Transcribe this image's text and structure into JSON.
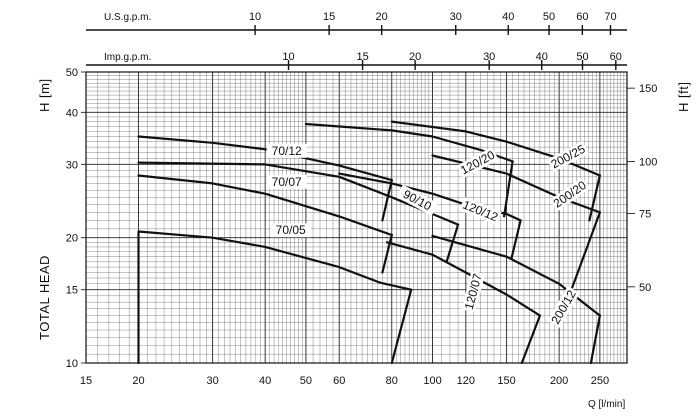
{
  "chart_data": {
    "type": "line",
    "x_scale": "log",
    "y_scale": "log",
    "grid": true,
    "xlabel": "Q [l/min]",
    "ylabel": "TOTAL HEAD",
    "ylabel_left_unit": "H [m]",
    "ylabel_right_unit": "H [ft]",
    "top_scale_1_label": "U.S.g.p.m.",
    "top_scale_2_label": "Imp.g.p.m.",
    "xlim": [
      15,
      290
    ],
    "ylim": [
      10,
      50
    ],
    "x_ticks": [
      "15",
      "20",
      "30",
      "40",
      "50",
      "60",
      "80",
      "100",
      "120",
      "150",
      "200",
      "250"
    ],
    "y_ticks_left": [
      "10",
      "15",
      "20",
      "30",
      "40",
      "50"
    ],
    "y_ticks_right": [
      "50",
      "75",
      "100",
      "150"
    ],
    "usgpm_ticks": [
      "10",
      "15",
      "20",
      "30",
      "40",
      "50",
      "60",
      "70"
    ],
    "impgpm_ticks": [
      "10",
      "15",
      "20",
      "30",
      "40",
      "50",
      "60"
    ],
    "series": [
      {
        "name": "70/05",
        "points": [
          [
            20,
            10
          ],
          [
            20,
            20.7
          ],
          [
            30,
            20
          ],
          [
            40,
            19
          ],
          [
            60,
            17
          ],
          [
            75,
            15.6
          ],
          [
            89,
            15
          ]
        ],
        "limit": [
          [
            89,
            15
          ],
          [
            80,
            10
          ]
        ]
      },
      {
        "name": "70/07",
        "points": [
          [
            20,
            28.2
          ],
          [
            30,
            27
          ],
          [
            40,
            25.5
          ],
          [
            60,
            22.5
          ],
          [
            80,
            20.3
          ]
        ],
        "limit": [
          [
            80,
            20.3
          ],
          [
            76,
            16.5
          ]
        ]
      },
      {
        "name": "70/12",
        "points": [
          [
            20,
            35
          ],
          [
            30,
            33.8
          ],
          [
            40,
            32.6
          ],
          [
            60,
            29.8
          ],
          [
            80,
            27.5
          ]
        ],
        "limit": [
          [
            80,
            27.5
          ],
          [
            76,
            22
          ]
        ]
      },
      {
        "name": "90/10",
        "points": [
          [
            20,
            30.3
          ],
          [
            40,
            30
          ],
          [
            60,
            28
          ],
          [
            80,
            25
          ],
          [
            100,
            22.8
          ],
          [
            115,
            21.5
          ]
        ],
        "limit": [
          [
            115,
            21.5
          ],
          [
            108,
            17.5
          ]
        ]
      },
      {
        "name": "120/07",
        "points": [
          [
            78,
            19.5
          ],
          [
            100,
            18.2
          ],
          [
            120,
            16.5
          ],
          [
            150,
            14.6
          ],
          [
            180,
            13
          ]
        ],
        "limit": [
          [
            180,
            13
          ],
          [
            163,
            10
          ]
        ]
      },
      {
        "name": "120/12",
        "points": [
          [
            60,
            28.5
          ],
          [
            80,
            27
          ],
          [
            100,
            25.5
          ],
          [
            120,
            24
          ],
          [
            150,
            22.8
          ],
          [
            162,
            22
          ]
        ],
        "limit": [
          [
            162,
            22
          ],
          [
            154,
            17.8
          ]
        ]
      },
      {
        "name": "120/20",
        "points": [
          [
            50,
            37.5
          ],
          [
            80,
            36.2
          ],
          [
            100,
            35
          ],
          [
            130,
            32.5
          ],
          [
            155,
            30.5
          ]
        ],
        "limit": [
          [
            155,
            30.5
          ],
          [
            148,
            22.5
          ]
        ]
      },
      {
        "name": "200/12",
        "points": [
          [
            100,
            20.2
          ],
          [
            150,
            18
          ],
          [
            200,
            15.5
          ],
          [
            250,
            13
          ]
        ],
        "limit": [
          [
            250,
            13
          ],
          [
            238,
            10
          ]
        ]
      },
      {
        "name": "200/20",
        "points": [
          [
            100,
            31.5
          ],
          [
            150,
            28.5
          ],
          [
            200,
            25
          ],
          [
            250,
            23
          ]
        ],
        "limit": [
          [
            250,
            23
          ],
          [
            215,
            15.2
          ]
        ]
      },
      {
        "name": "200/25",
        "points": [
          [
            80,
            38
          ],
          [
            120,
            36
          ],
          [
            150,
            34
          ],
          [
            200,
            31
          ],
          [
            250,
            28.2
          ]
        ],
        "limit": [
          [
            250,
            28.2
          ],
          [
            236,
            22
          ]
        ]
      }
    ]
  }
}
